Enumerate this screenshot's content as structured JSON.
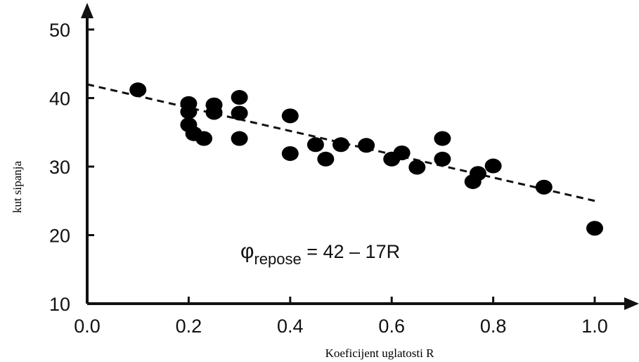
{
  "chart_data": {
    "type": "scatter",
    "xlabel": "Koeficijent uglatosti R",
    "ylabel": "kut sipanja",
    "xlim": [
      0.0,
      1.0
    ],
    "ylim": [
      10,
      50
    ],
    "x_ticks": [
      "0.0",
      "0.2",
      "0.4",
      "0.6",
      "0.8",
      "1.0"
    ],
    "y_ticks": [
      "10",
      "20",
      "30",
      "40",
      "50"
    ],
    "grid": false,
    "points": [
      {
        "x": 0.1,
        "y": 41.2
      },
      {
        "x": 0.2,
        "y": 39.2
      },
      {
        "x": 0.2,
        "y": 38.0
      },
      {
        "x": 0.2,
        "y": 36.1
      },
      {
        "x": 0.21,
        "y": 34.8
      },
      {
        "x": 0.23,
        "y": 34.1
      },
      {
        "x": 0.25,
        "y": 39.0
      },
      {
        "x": 0.25,
        "y": 37.9
      },
      {
        "x": 0.3,
        "y": 40.1
      },
      {
        "x": 0.3,
        "y": 37.8
      },
      {
        "x": 0.3,
        "y": 34.1
      },
      {
        "x": 0.4,
        "y": 37.4
      },
      {
        "x": 0.4,
        "y": 31.9
      },
      {
        "x": 0.45,
        "y": 33.2
      },
      {
        "x": 0.47,
        "y": 31.1
      },
      {
        "x": 0.5,
        "y": 33.2
      },
      {
        "x": 0.55,
        "y": 33.1
      },
      {
        "x": 0.6,
        "y": 31.1
      },
      {
        "x": 0.62,
        "y": 32.0
      },
      {
        "x": 0.65,
        "y": 29.9
      },
      {
        "x": 0.7,
        "y": 34.1
      },
      {
        "x": 0.7,
        "y": 31.1
      },
      {
        "x": 0.76,
        "y": 27.8
      },
      {
        "x": 0.77,
        "y": 29.0
      },
      {
        "x": 0.8,
        "y": 30.1
      },
      {
        "x": 0.9,
        "y": 27.0
      },
      {
        "x": 1.0,
        "y": 21.0
      }
    ],
    "trendline": {
      "intercept": 42,
      "slope": -17,
      "style": "dashed",
      "x_range": [
        0.0,
        1.0
      ]
    },
    "equation": {
      "symbol": "φ",
      "subscript": "repose",
      "rhs": " = 42 – 17R"
    }
  }
}
